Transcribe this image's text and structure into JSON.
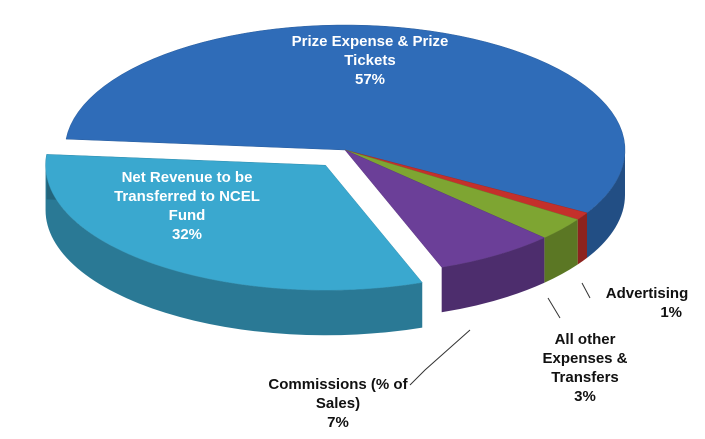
{
  "chart_data": {
    "type": "pie",
    "categories": [
      "Prize Expense & Prize Tickets",
      "Advertising",
      "All other Expenses & Transfers",
      "Commissions (% of Sales)",
      "Net Revenue to be Transferred to NCEL Fund"
    ],
    "values": [
      57,
      1,
      3,
      7,
      32
    ],
    "value_labels": [
      "57%",
      "1%",
      "3%",
      "7%",
      "32%"
    ],
    "colors": [
      "#2f6cb8",
      "#c4302b",
      "#7ea532",
      "#6b3f98",
      "#3aa8cf"
    ]
  }
}
